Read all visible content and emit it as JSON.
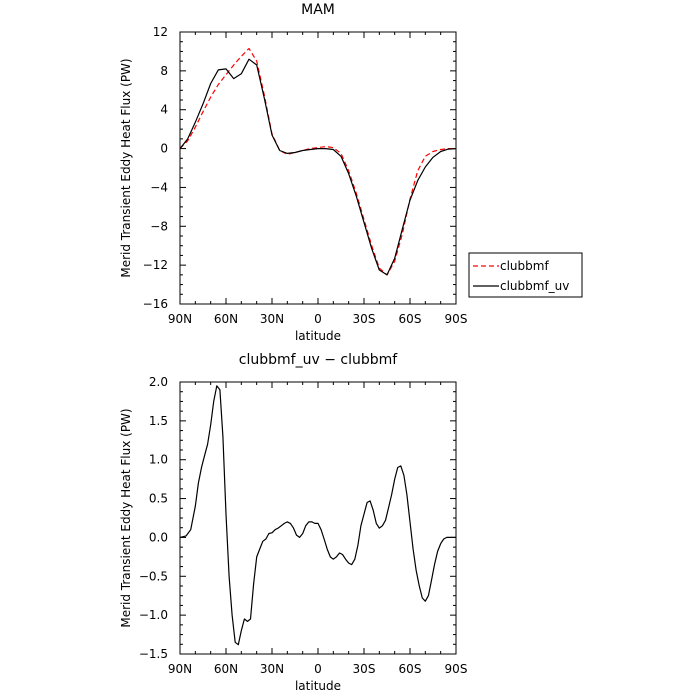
{
  "chart_data": [
    {
      "type": "line",
      "title": "MAM",
      "xlabel": "latitude",
      "ylabel": "Merid Transient Eddy Heat Flux (PW)",
      "x_ticks": [
        {
          "value": 90,
          "label": "90N"
        },
        {
          "value": 60,
          "label": "60N"
        },
        {
          "value": 30,
          "label": "30N"
        },
        {
          "value": 0,
          "label": "0"
        },
        {
          "value": -30,
          "label": "30S"
        },
        {
          "value": -60,
          "label": "60S"
        },
        {
          "value": -90,
          "label": "90S"
        }
      ],
      "xlim": [
        90,
        -90
      ],
      "ylim": [
        -16,
        12
      ],
      "y_ticks": [
        12,
        8,
        4,
        0,
        -4,
        -8,
        -12,
        -16
      ],
      "y_tick_labels": [
        "12",
        "8",
        "4",
        "0",
        "−4",
        "−8",
        "−12",
        "−16"
      ],
      "legend": "outside-right",
      "series": [
        {
          "name": "clubbmf",
          "color": "#ff0000",
          "dash": "dashed",
          "x": [
            90,
            85,
            80,
            75,
            70,
            65,
            60,
            55,
            50,
            45,
            40,
            35,
            30,
            25,
            20,
            15,
            10,
            5,
            0,
            -5,
            -10,
            -15,
            -20,
            -25,
            -30,
            -35,
            -40,
            -45,
            -50,
            -55,
            -60,
            -65,
            -70,
            -75,
            -80,
            -85,
            -90
          ],
          "y": [
            0,
            0.8,
            2.2,
            3.8,
            5.3,
            6.6,
            7.6,
            8.6,
            9.5,
            10.3,
            9.0,
            5.5,
            1.5,
            -0.2,
            -0.6,
            -0.4,
            -0.2,
            0,
            0.1,
            0.2,
            0.1,
            -0.5,
            -2.3,
            -4.6,
            -7.3,
            -10.0,
            -12.3,
            -13.0,
            -11.6,
            -8.8,
            -5.2,
            -2.3,
            -0.8,
            -0.3,
            -0.1,
            0,
            0
          ]
        },
        {
          "name": "clubbmf_uv",
          "color": "#000000",
          "dash": "solid",
          "x": [
            90,
            85,
            80,
            75,
            70,
            65,
            60,
            55,
            50,
            45,
            40,
            35,
            30,
            25,
            20,
            15,
            10,
            5,
            0,
            -5,
            -10,
            -15,
            -20,
            -25,
            -30,
            -35,
            -40,
            -45,
            -50,
            -55,
            -60,
            -65,
            -70,
            -75,
            -80,
            -85,
            -90
          ],
          "y": [
            0,
            1.0,
            2.7,
            4.6,
            6.7,
            8.1,
            8.2,
            7.2,
            7.7,
            9.2,
            8.6,
            5.2,
            1.4,
            -0.2,
            -0.5,
            -0.4,
            -0.2,
            -0.1,
            0,
            0,
            -0.1,
            -0.8,
            -2.6,
            -4.9,
            -7.6,
            -10.3,
            -12.5,
            -13.0,
            -11.3,
            -8.3,
            -5.3,
            -3.3,
            -1.9,
            -0.9,
            -0.3,
            -0.05,
            0
          ]
        }
      ]
    },
    {
      "type": "line",
      "title": "clubbmf_uv − clubbmf",
      "xlabel": "latitude",
      "ylabel": "Merid Transient Eddy Heat Flux (PW)",
      "x_ticks": [
        {
          "value": 90,
          "label": "90N"
        },
        {
          "value": 60,
          "label": "60N"
        },
        {
          "value": 30,
          "label": "30N"
        },
        {
          "value": 0,
          "label": "0"
        },
        {
          "value": -30,
          "label": "30S"
        },
        {
          "value": -60,
          "label": "60S"
        },
        {
          "value": -90,
          "label": "90S"
        }
      ],
      "xlim": [
        90,
        -90
      ],
      "ylim": [
        -1.5,
        2.0
      ],
      "y_ticks": [
        2.0,
        1.5,
        1.0,
        0.5,
        0.0,
        -0.5,
        -1.0,
        -1.5
      ],
      "y_tick_labels": [
        "2.0",
        "1.5",
        "1.0",
        "0.5",
        "0.0",
        "−0.5",
        "−1.0",
        "−1.5"
      ],
      "series": [
        {
          "name": "",
          "color": "#000000",
          "dash": "solid",
          "x": [
            90,
            86,
            83,
            80,
            78,
            76,
            74,
            72,
            70,
            68,
            66,
            64,
            62,
            60,
            58,
            56,
            54,
            52,
            50,
            48,
            46,
            44,
            42,
            40,
            38,
            36,
            34,
            32,
            30,
            28,
            26,
            24,
            22,
            20,
            18,
            16,
            14,
            12,
            10,
            8,
            6,
            4,
            2,
            0,
            -2,
            -4,
            -6,
            -8,
            -10,
            -12,
            -14,
            -16,
            -18,
            -20,
            -22,
            -24,
            -26,
            -28,
            -30,
            -32,
            -34,
            -36,
            -38,
            -40,
            -42,
            -44,
            -46,
            -48,
            -50,
            -52,
            -54,
            -56,
            -58,
            -60,
            -62,
            -64,
            -66,
            -68,
            -70,
            -72,
            -74,
            -76,
            -78,
            -80,
            -82,
            -84,
            -86,
            -88,
            -90
          ],
          "y": [
            0,
            0.02,
            0.1,
            0.4,
            0.7,
            0.9,
            1.05,
            1.2,
            1.45,
            1.75,
            1.95,
            1.9,
            1.3,
            0.3,
            -0.5,
            -1.0,
            -1.35,
            -1.38,
            -1.2,
            -1.05,
            -1.08,
            -1.05,
            -0.6,
            -0.25,
            -0.15,
            -0.05,
            -0.02,
            0.05,
            0.06,
            0.1,
            0.12,
            0.15,
            0.18,
            0.2,
            0.18,
            0.12,
            0.03,
            0.0,
            0.05,
            0.15,
            0.2,
            0.2,
            0.18,
            0.18,
            0.1,
            -0.02,
            -0.15,
            -0.25,
            -0.28,
            -0.25,
            -0.2,
            -0.22,
            -0.28,
            -0.33,
            -0.35,
            -0.28,
            -0.1,
            0.15,
            0.3,
            0.45,
            0.47,
            0.35,
            0.18,
            0.12,
            0.15,
            0.22,
            0.38,
            0.55,
            0.75,
            0.9,
            0.92,
            0.8,
            0.55,
            0.2,
            -0.15,
            -0.42,
            -0.62,
            -0.78,
            -0.82,
            -0.75,
            -0.55,
            -0.35,
            -0.18,
            -0.08,
            -0.02,
            0,
            0,
            0,
            0
          ]
        }
      ]
    }
  ]
}
